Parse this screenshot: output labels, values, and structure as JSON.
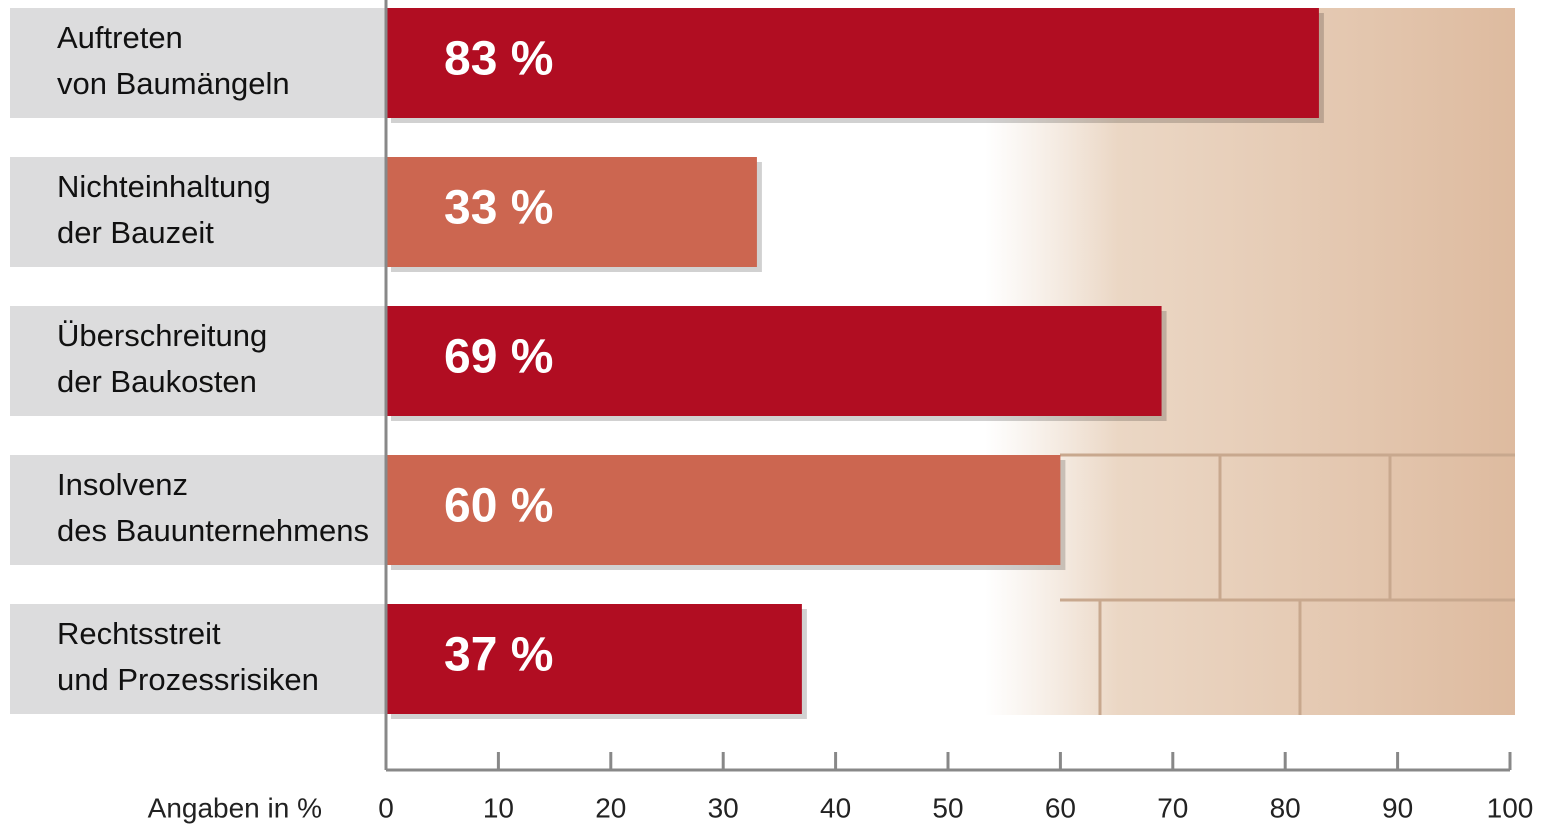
{
  "chart_data": {
    "type": "hbar",
    "categories": [
      [
        "Auftreten",
        "von Baumängeln"
      ],
      [
        "Nichteinhaltung",
        "der Bauzeit"
      ],
      [
        "Überschreitung",
        "der Baukosten"
      ],
      [
        "Insolvenz",
        "des Bauunternehmens"
      ],
      [
        "Rechtsstreit",
        "und Prozessrisiken"
      ]
    ],
    "values": [
      83,
      33,
      69,
      60,
      37
    ],
    "value_labels": [
      "83 %",
      "33 %",
      "69 %",
      "60 %",
      "37 %"
    ],
    "colors": [
      "#b10d22",
      "#cc6650",
      "#b10d22",
      "#cc6650",
      "#b10d22"
    ],
    "xlim": [
      0,
      100
    ],
    "xticks": [
      0,
      10,
      20,
      30,
      40,
      50,
      60,
      70,
      80,
      90,
      100
    ],
    "xlabel": "Angaben in %"
  }
}
